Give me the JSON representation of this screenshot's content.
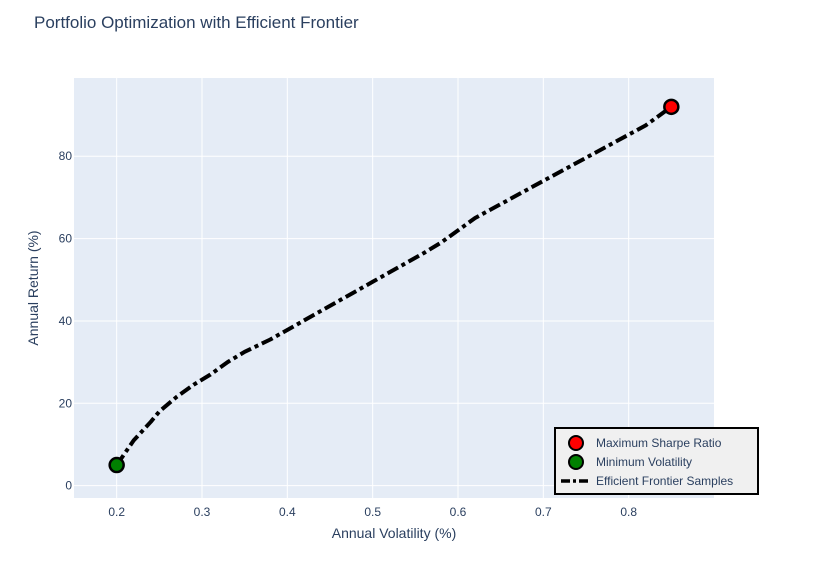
{
  "chart_data": {
    "type": "scatter",
    "title": "Portfolio Optimization with Efficient Frontier",
    "xlabel": "Annual Volatility (%)",
    "ylabel": "Annual Return (%)",
    "xlim": [
      0.15,
      0.9
    ],
    "ylim": [
      -3,
      99
    ],
    "xticks": [
      0.2,
      0.3,
      0.4,
      0.5,
      0.6,
      0.7,
      0.8
    ],
    "yticks": [
      0,
      20,
      40,
      60,
      80
    ],
    "grid": true,
    "legend_position": "bottom-right",
    "colors": {
      "plot_bg": "#e5ecf6",
      "grid": "#ffffff",
      "text": "#2a3f5f",
      "frontier": "#000000",
      "max_sharpe": "#ff0000",
      "min_vol": "#008000"
    },
    "series": [
      {
        "name": "Maximum Sharpe Ratio",
        "mode": "marker",
        "x": [
          0.85
        ],
        "y": [
          92
        ]
      },
      {
        "name": "Minimum Volatility",
        "mode": "marker",
        "x": [
          0.2
        ],
        "y": [
          5
        ]
      },
      {
        "name": "Efficient Frontier Samples",
        "mode": "line-dashdot",
        "x": [
          0.2,
          0.21,
          0.22,
          0.24,
          0.25,
          0.27,
          0.29,
          0.31,
          0.33,
          0.35,
          0.38,
          0.41,
          0.44,
          0.47,
          0.5,
          0.53,
          0.56,
          0.58,
          0.6,
          0.62,
          0.66,
          0.7,
          0.74,
          0.78,
          0.82,
          0.85
        ],
        "y": [
          5,
          8,
          11,
          15.5,
          18,
          21.5,
          24.5,
          27,
          30,
          32.5,
          35.5,
          39,
          42.5,
          46,
          49.5,
          53,
          56.5,
          59,
          62,
          65,
          69.5,
          74,
          78.5,
          83,
          87.5,
          92
        ]
      }
    ]
  }
}
